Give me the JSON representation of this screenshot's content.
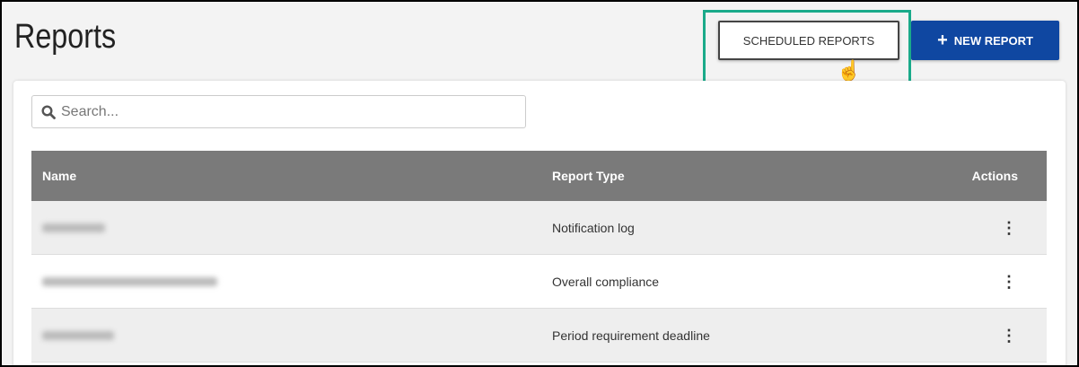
{
  "header": {
    "title": "Reports",
    "scheduled_reports_label": "SCHEDULED REPORTS",
    "new_report_label": "NEW REPORT",
    "new_report_icon": "plus-icon"
  },
  "highlight_color": "#1aaa8a",
  "accent_color": "#0f47a1",
  "search": {
    "placeholder": "Search...",
    "value": ""
  },
  "table": {
    "columns": [
      "Name",
      "Report Type",
      "Actions"
    ],
    "rows": [
      {
        "report_type": "Notification log"
      },
      {
        "report_type": "Overall compliance"
      },
      {
        "report_type": "Period requirement deadline"
      }
    ]
  }
}
